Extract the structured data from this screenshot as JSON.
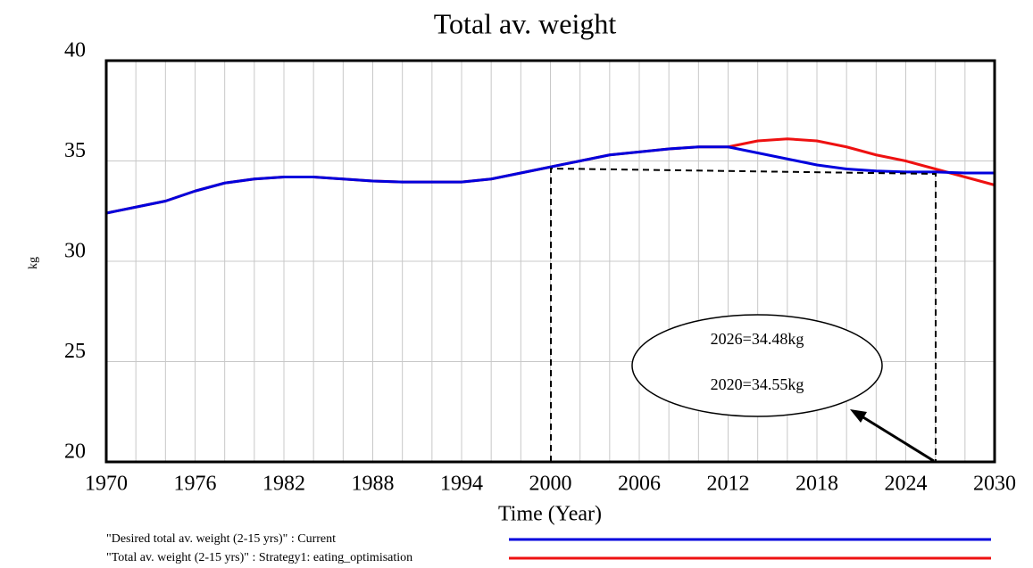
{
  "chart_data": {
    "type": "line",
    "title": "Total av. weight",
    "y_label": "kg",
    "x_label": "Time (Year)",
    "x": [
      1970,
      1972,
      1974,
      1976,
      1978,
      1980,
      1982,
      1984,
      1986,
      1988,
      1990,
      1992,
      1994,
      1996,
      1998,
      2000,
      2002,
      2004,
      2006,
      2008,
      2010,
      2012,
      2014,
      2016,
      2018,
      2020,
      2022,
      2024,
      2026,
      2028,
      2030
    ],
    "series": [
      {
        "name": "\"Desired total av. weight (2-15 yrs)\" : Current",
        "color": "#0000dd",
        "values": [
          32.4,
          32.7,
          33.0,
          33.5,
          33.9,
          34.1,
          34.2,
          34.2,
          34.1,
          34.0,
          33.95,
          33.95,
          33.95,
          34.1,
          34.4,
          34.7,
          35.0,
          35.3,
          35.45,
          35.6,
          35.7,
          35.7,
          35.4,
          35.1,
          34.8,
          34.6,
          34.5,
          34.45,
          34.45,
          34.4,
          34.4
        ]
      },
      {
        "name": "\"Total av. weight (2-15 yrs)\" : Strategy1: eating_optimisation",
        "color": "#ee1111",
        "values": [
          32.4,
          32.7,
          33.0,
          33.5,
          33.9,
          34.1,
          34.2,
          34.2,
          34.1,
          34.0,
          33.95,
          33.95,
          33.95,
          34.1,
          34.4,
          34.7,
          35.0,
          35.3,
          35.45,
          35.6,
          35.7,
          35.7,
          36.0,
          36.1,
          36.0,
          35.7,
          35.3,
          35.0,
          34.6,
          34.2,
          33.8
        ]
      }
    ],
    "xlim": [
      1970,
      2030
    ],
    "xticks": [
      1970,
      1976,
      1982,
      1988,
      1994,
      2000,
      2006,
      2012,
      2018,
      2024,
      2030
    ],
    "x_grid_step": 2,
    "ylim": [
      20,
      40
    ],
    "yticks": [
      20,
      25,
      30,
      35,
      40
    ],
    "grid": true,
    "annotations": [
      "2026=34.48kg",
      "2020=34.55kg"
    ]
  }
}
